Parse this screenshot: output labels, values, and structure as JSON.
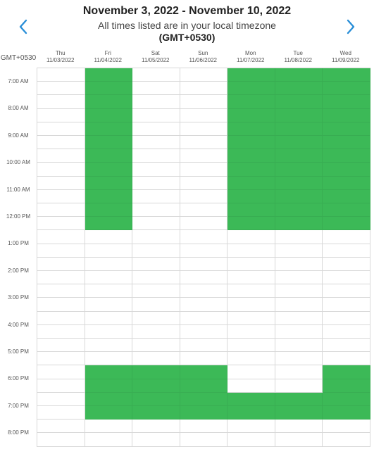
{
  "header": {
    "title": "November 3, 2022 - November 10, 2022",
    "subtitle": "All times listed are in your local timezone",
    "timezone": "(GMT+0530)",
    "prev_icon": "chevron-left-icon",
    "next_icon": "chevron-right-icon",
    "accent_color": "#2a8fd8"
  },
  "grid": {
    "timezone_label": "GMT+0530",
    "available_color": "#3cb957",
    "days": [
      {
        "name": "Thu",
        "date": "11/03/2022"
      },
      {
        "name": "Fri",
        "date": "11/04/2022"
      },
      {
        "name": "Sat",
        "date": "11/05/2022"
      },
      {
        "name": "Sun",
        "date": "11/06/2022"
      },
      {
        "name": "Mon",
        "date": "11/07/2022"
      },
      {
        "name": "Tue",
        "date": "11/08/2022"
      },
      {
        "name": "Wed",
        "date": "11/09/2022"
      }
    ],
    "time_labels": [
      "7:00 AM",
      "8:00 AM",
      "9:00 AM",
      "10:00 AM",
      "11:00 AM",
      "12:00 PM",
      "1:00 PM",
      "2:00 PM",
      "3:00 PM",
      "4:00 PM",
      "5:00 PM",
      "6:00 PM",
      "7:00 PM",
      "8:00 PM"
    ],
    "available": [
      [
        0,
        0,
        0,
        0,
        0,
        0,
        0,
        0,
        0,
        0,
        0,
        0,
        0,
        0,
        0,
        0,
        0,
        0,
        0,
        0,
        0,
        0,
        0,
        0,
        0,
        0,
        0,
        0
      ],
      [
        1,
        1,
        1,
        1,
        1,
        1,
        1,
        1,
        1,
        1,
        1,
        1,
        0,
        0,
        0,
        0,
        0,
        0,
        0,
        0,
        0,
        0,
        1,
        1,
        1,
        1,
        0,
        0
      ],
      [
        0,
        0,
        0,
        0,
        0,
        0,
        0,
        0,
        0,
        0,
        0,
        0,
        0,
        0,
        0,
        0,
        0,
        0,
        0,
        0,
        0,
        0,
        1,
        1,
        1,
        1,
        0,
        0
      ],
      [
        0,
        0,
        0,
        0,
        0,
        0,
        0,
        0,
        0,
        0,
        0,
        0,
        0,
        0,
        0,
        0,
        0,
        0,
        0,
        0,
        0,
        0,
        1,
        1,
        1,
        1,
        0,
        0
      ],
      [
        1,
        1,
        1,
        1,
        1,
        1,
        1,
        1,
        1,
        1,
        1,
        1,
        0,
        0,
        0,
        0,
        0,
        0,
        0,
        0,
        0,
        0,
        0,
        0,
        1,
        1,
        0,
        0
      ],
      [
        1,
        1,
        1,
        1,
        1,
        1,
        1,
        1,
        1,
        1,
        1,
        1,
        0,
        0,
        0,
        0,
        0,
        0,
        0,
        0,
        0,
        0,
        0,
        0,
        1,
        1,
        0,
        0
      ],
      [
        1,
        1,
        1,
        1,
        1,
        1,
        1,
        1,
        1,
        1,
        1,
        1,
        0,
        0,
        0,
        0,
        0,
        0,
        0,
        0,
        0,
        0,
        1,
        1,
        1,
        1,
        0,
        0
      ]
    ]
  }
}
